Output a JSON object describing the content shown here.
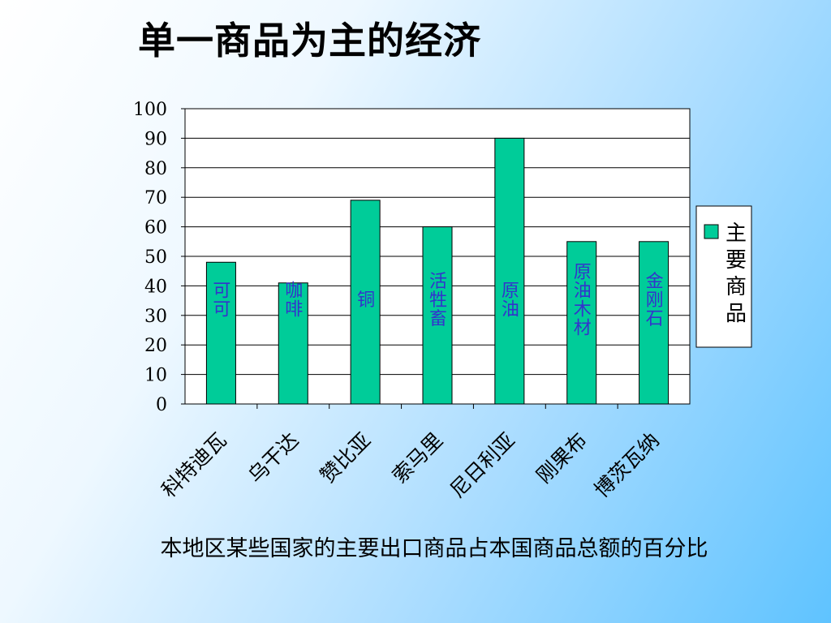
{
  "title": "单一商品为主的经济",
  "caption": "本地区某些国家的主要出口商品占本国商品总额的百分比",
  "colors": {
    "bar": "#00cc99",
    "bar_label": "#3333cc"
  },
  "chart_data": {
    "type": "bar",
    "title": "",
    "xlabel": "",
    "ylabel": "",
    "ylim": [
      0,
      100
    ],
    "yticks": [
      0,
      10,
      20,
      30,
      40,
      50,
      60,
      70,
      80,
      90,
      100
    ],
    "grid": true,
    "legend_position": "right",
    "categories": [
      "科特迪瓦",
      "乌干达",
      "赞比亚",
      "索马里",
      "尼日利亚",
      "刚果布",
      "博茨瓦纳"
    ],
    "series": [
      {
        "name": "主要商品",
        "values": [
          48,
          41,
          69,
          60,
          90,
          55,
          55
        ],
        "labels": [
          "可可",
          "咖啡",
          "铜",
          "活牲畜",
          "原油",
          "原油木材",
          "金刚石"
        ]
      }
    ]
  }
}
